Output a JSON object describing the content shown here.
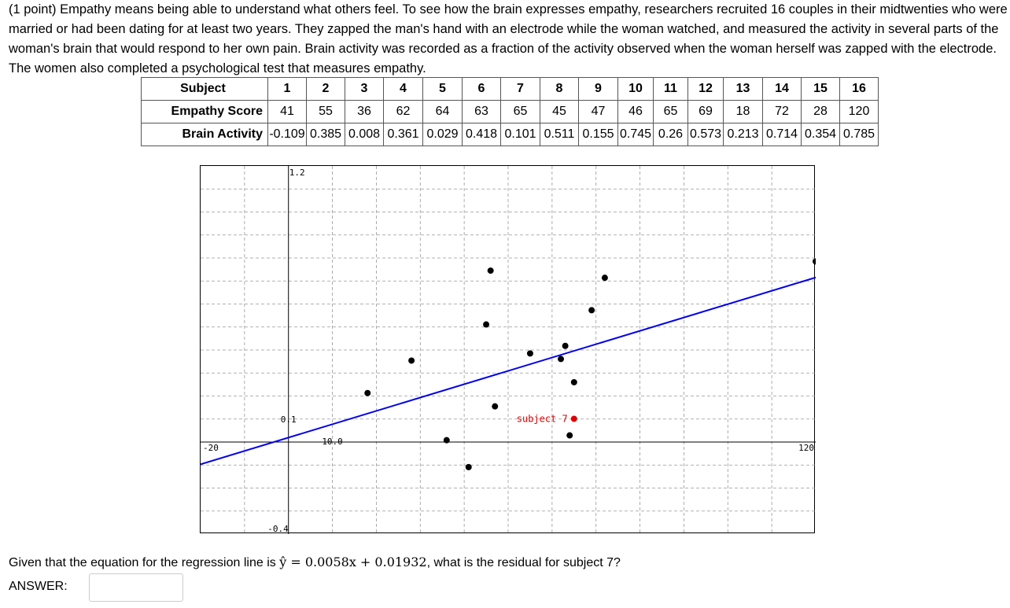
{
  "problem": {
    "text": "(1 point) Empathy means being able to understand what others feel. To see how the brain expresses empathy, researchers recruited 16 couples in their midtwenties who were married or had been dating for at least two years. They zapped the man's hand with an electrode while the woman watched, and measured the activity in several parts of the woman's brain that would respond to her own pain. Brain activity was recorded as a fraction of the activity observed when the woman herself was zapped with the electrode. The women also completed a psychological test that measures empathy."
  },
  "table": {
    "row_labels": [
      "Subject",
      "Empathy Score",
      "Brain Activity"
    ],
    "subjects": [
      "1",
      "2",
      "3",
      "4",
      "5",
      "6",
      "7",
      "8",
      "9",
      "10",
      "11",
      "12",
      "13",
      "14",
      "15",
      "16"
    ],
    "empathy_scores": [
      "41",
      "55",
      "36",
      "62",
      "64",
      "63",
      "65",
      "45",
      "47",
      "46",
      "65",
      "69",
      "18",
      "72",
      "28",
      "120"
    ],
    "brain_activity": [
      "-0.109",
      "0.385",
      "0.008",
      "0.361",
      "0.029",
      "0.418",
      "0.101",
      "0.511",
      "0.155",
      "0.745",
      "0.26",
      "0.573",
      "0.213",
      "0.714",
      "0.354",
      "0.785"
    ]
  },
  "chart_data": {
    "type": "scatter",
    "xlim": [
      -20,
      120
    ],
    "ylim": [
      -0.4,
      1.2
    ],
    "tick_labels": {
      "x_min": "-20",
      "x_mid": "10.0",
      "x_max": "120",
      "y_max": "1.2",
      "y_mid": "0.1",
      "y_min": "-0.4"
    },
    "points": [
      {
        "x": 41,
        "y": -0.109
      },
      {
        "x": 55,
        "y": 0.385
      },
      {
        "x": 36,
        "y": 0.008
      },
      {
        "x": 62,
        "y": 0.361
      },
      {
        "x": 64,
        "y": 0.029
      },
      {
        "x": 63,
        "y": 0.418
      },
      {
        "x": 65,
        "y": 0.101
      },
      {
        "x": 45,
        "y": 0.511
      },
      {
        "x": 47,
        "y": 0.155
      },
      {
        "x": 46,
        "y": 0.745
      },
      {
        "x": 65,
        "y": 0.26
      },
      {
        "x": 69,
        "y": 0.573
      },
      {
        "x": 18,
        "y": 0.213
      },
      {
        "x": 72,
        "y": 0.714
      },
      {
        "x": 28,
        "y": 0.354
      },
      {
        "x": 120,
        "y": 0.785
      }
    ],
    "highlight_index": 6,
    "annotation": "subject 7",
    "regression": {
      "slope": 0.0058,
      "intercept": 0.01932
    },
    "colors": {
      "points": "#000000",
      "highlight": "#e00000",
      "line": "#0000ee",
      "grid": "#999999"
    }
  },
  "question": {
    "prefix": "Given that the equation for the regression line is",
    "equation": "ŷ = 0.0058x + 0.01932",
    "suffix": ", what is the residual for subject 7?"
  },
  "answer": {
    "label": "ANSWER:",
    "value": ""
  }
}
